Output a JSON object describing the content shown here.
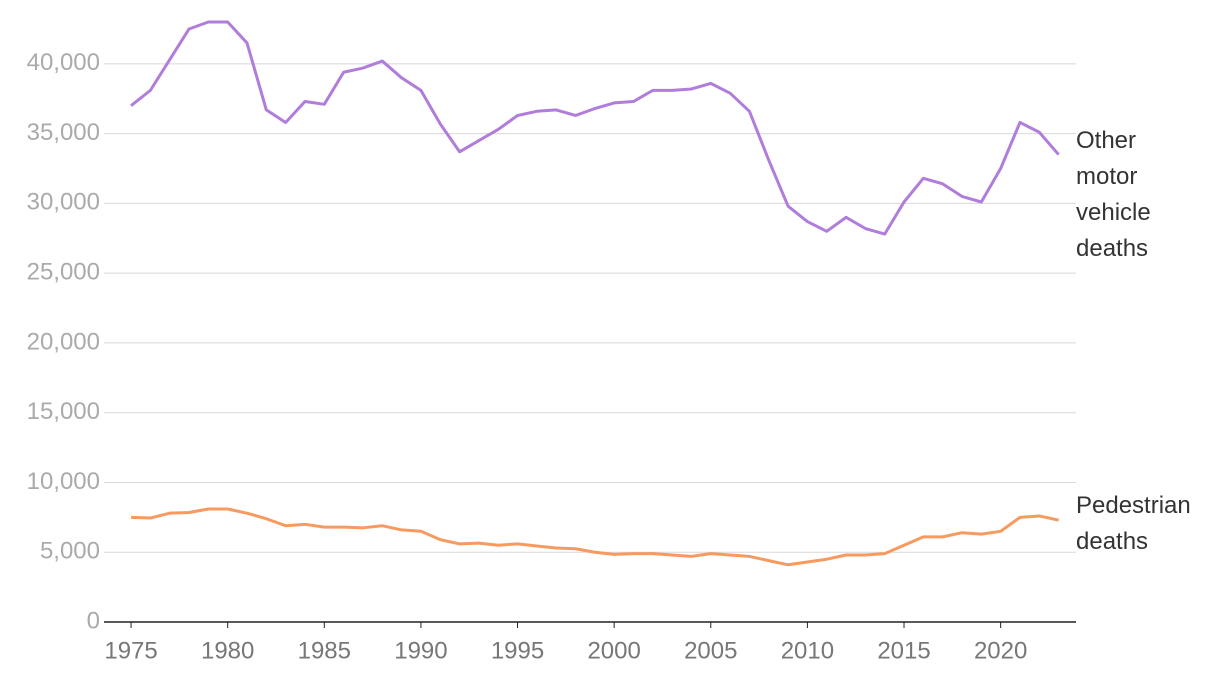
{
  "chart_data": {
    "type": "line",
    "x": [
      1975,
      1976,
      1977,
      1978,
      1979,
      1980,
      1981,
      1982,
      1983,
      1984,
      1985,
      1986,
      1987,
      1988,
      1989,
      1990,
      1991,
      1992,
      1993,
      1994,
      1995,
      1996,
      1997,
      1998,
      1999,
      2000,
      2001,
      2002,
      2003,
      2004,
      2005,
      2006,
      2007,
      2008,
      2009,
      2010,
      2011,
      2012,
      2013,
      2014,
      2015,
      2016,
      2017,
      2018,
      2019,
      2020,
      2021,
      2022,
      2023
    ],
    "series": [
      {
        "name": "Other motor vehicle deaths",
        "color": "#b07ddb",
        "values": [
          37000,
          38100,
          40300,
          42500,
          43000,
          43000,
          41500,
          36700,
          35800,
          37300,
          37100,
          39400,
          39700,
          40200,
          39000,
          38100,
          35700,
          33700,
          34500,
          35300,
          36300,
          36600,
          36700,
          36300,
          36800,
          37200,
          37300,
          38100,
          38100,
          38200,
          38600,
          37900,
          36600,
          33100,
          29800,
          28700,
          28000,
          29000,
          28200,
          27800,
          30100,
          31800,
          31400,
          30500,
          30100,
          32500,
          35800,
          35100,
          33500
        ]
      },
      {
        "name": "Pedestrian deaths",
        "color": "#f79a60",
        "values": [
          7500,
          7450,
          7800,
          7850,
          8100,
          8100,
          7800,
          7400,
          6900,
          7000,
          6800,
          6800,
          6750,
          6900,
          6600,
          6500,
          5900,
          5600,
          5650,
          5500,
          5600,
          5450,
          5300,
          5250,
          5000,
          4850,
          4900,
          4900,
          4800,
          4700,
          4900,
          4800,
          4700,
          4400,
          4100,
          4300,
          4500,
          4800,
          4800,
          4900,
          5500,
          6100,
          6100,
          6400,
          6300,
          6500,
          7500,
          7600,
          7300
        ]
      }
    ],
    "xlim": [
      1973.6,
      2023.9
    ],
    "xticks": [
      1975,
      1980,
      1985,
      1990,
      1995,
      2000,
      2005,
      2010,
      2015,
      2020
    ],
    "ylim": [
      0,
      43000
    ],
    "yticks": [
      0,
      {
        "value": 5000,
        "label": "5,000"
      },
      {
        "value": 10000,
        "label": "10,000"
      },
      {
        "value": 15000,
        "label": "15,000"
      },
      {
        "value": 20000,
        "label": "20,000"
      },
      {
        "value": 25000,
        "label": "25,000"
      },
      {
        "value": 30000,
        "label": "30,000"
      },
      {
        "value": 35000,
        "label": "35,000"
      },
      {
        "value": 40000,
        "label": "40,000"
      }
    ],
    "grid": true
  }
}
